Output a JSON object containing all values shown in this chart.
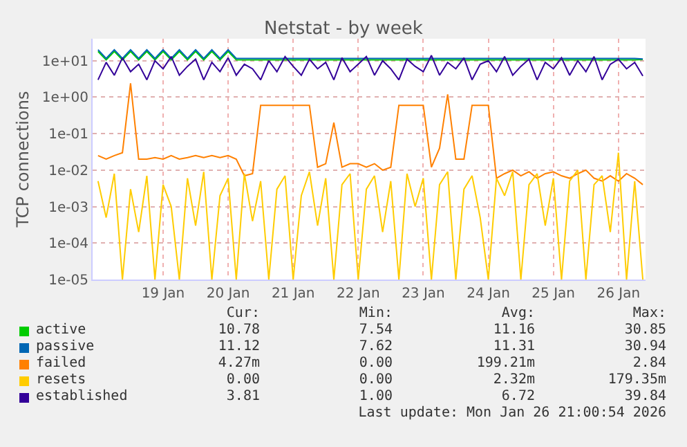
{
  "chart_data": {
    "type": "line",
    "title": "Netstat - by week",
    "ylabel": "TCP connections",
    "x": [
      "2026-01-18T00:00",
      "2026-01-18T03:00",
      "2026-01-18T06:00",
      "2026-01-18T09:00",
      "2026-01-18T12:00",
      "2026-01-18T15:00",
      "2026-01-18T18:00",
      "2026-01-18T21:00",
      "2026-01-19T00:00",
      "2026-01-19T03:00",
      "2026-01-19T06:00",
      "2026-01-19T09:00",
      "2026-01-19T12:00",
      "2026-01-19T15:00",
      "2026-01-19T18:00",
      "2026-01-19T21:00",
      "2026-01-20T00:00",
      "2026-01-20T03:00",
      "2026-01-20T06:00",
      "2026-01-20T09:00",
      "2026-01-20T12:00",
      "2026-01-20T15:00",
      "2026-01-20T18:00",
      "2026-01-20T21:00",
      "2026-01-21T00:00",
      "2026-01-21T03:00",
      "2026-01-21T06:00",
      "2026-01-21T09:00",
      "2026-01-21T12:00",
      "2026-01-21T15:00",
      "2026-01-21T18:00",
      "2026-01-21T21:00",
      "2026-01-22T00:00",
      "2026-01-22T03:00",
      "2026-01-22T06:00",
      "2026-01-22T09:00",
      "2026-01-22T12:00",
      "2026-01-22T15:00",
      "2026-01-22T18:00",
      "2026-01-22T21:00",
      "2026-01-23T00:00",
      "2026-01-23T03:00",
      "2026-01-23T06:00",
      "2026-01-23T09:00",
      "2026-01-23T12:00",
      "2026-01-23T15:00",
      "2026-01-23T18:00",
      "2026-01-23T21:00",
      "2026-01-24T00:00",
      "2026-01-24T03:00",
      "2026-01-24T06:00",
      "2026-01-24T09:00",
      "2026-01-24T12:00",
      "2026-01-24T15:00",
      "2026-01-24T18:00",
      "2026-01-24T21:00",
      "2026-01-25T00:00",
      "2026-01-25T03:00",
      "2026-01-25T06:00",
      "2026-01-25T09:00",
      "2026-01-25T12:00",
      "2026-01-25T15:00",
      "2026-01-25T18:00",
      "2026-01-25T21:00",
      "2026-01-26T00:00",
      "2026-01-26T03:00",
      "2026-01-26T06:00",
      "2026-01-26T09:00"
    ],
    "series": [
      {
        "name": "active",
        "color": "#00cc00",
        "values": [
          18,
          10.5,
          18,
          10.5,
          18,
          10.5,
          18,
          10.5,
          18,
          10.5,
          18,
          10.5,
          18,
          10.5,
          18,
          10.5,
          18,
          10.5,
          10.5,
          10.5,
          10.5,
          10.5,
          10.5,
          10.5,
          10.5,
          10.5,
          10.5,
          10.5,
          10.5,
          10.5,
          10.5,
          10.5,
          10.5,
          10.5,
          10.5,
          10.5,
          10.5,
          10.5,
          10.5,
          10.5,
          10.5,
          10.5,
          10.5,
          10.5,
          10.5,
          10.5,
          10.5,
          10.5,
          10.5,
          10.5,
          10.5,
          10.5,
          10.5,
          10.5,
          10.5,
          10.5,
          10.5,
          10.5,
          10.5,
          10.5,
          10.5,
          10.5,
          10.5,
          10.5,
          10.5,
          10.5,
          10.5,
          10.8
        ]
      },
      {
        "name": "passive",
        "color": "#0066b3",
        "values": [
          20,
          11.5,
          20,
          11.5,
          20,
          11.5,
          20,
          11.5,
          20,
          11.5,
          20,
          11.5,
          20,
          11.5,
          20,
          11.5,
          20,
          11.5,
          11.5,
          11.5,
          11.5,
          11.5,
          11.5,
          11.5,
          11.5,
          11.5,
          11.5,
          11.5,
          11.5,
          11.5,
          11.5,
          11.5,
          11.5,
          11.5,
          11.5,
          11.5,
          11.5,
          11.5,
          11.5,
          11.5,
          11.5,
          11.5,
          11.5,
          11.5,
          11.5,
          11.5,
          11.5,
          11.5,
          11.5,
          11.5,
          11.5,
          11.5,
          11.5,
          11.5,
          11.5,
          11.5,
          11.5,
          11.5,
          11.5,
          11.5,
          11.5,
          11.5,
          11.5,
          11.5,
          11.5,
          11.5,
          11.5,
          11.1
        ]
      },
      {
        "name": "failed",
        "color": "#ff8000",
        "values": [
          0.025,
          0.02,
          0.025,
          0.03,
          2.4,
          0.02,
          0.02,
          0.022,
          0.02,
          0.025,
          0.02,
          0.022,
          0.025,
          0.022,
          0.025,
          0.022,
          0.025,
          0.02,
          0.007,
          0.008,
          0.6,
          0.6,
          0.6,
          0.6,
          0.6,
          0.6,
          0.6,
          0.012,
          0.015,
          0.2,
          0.012,
          0.015,
          0.015,
          0.012,
          0.015,
          0.01,
          0.012,
          0.6,
          0.6,
          0.6,
          0.6,
          0.012,
          0.04,
          1.2,
          0.02,
          0.02,
          0.6,
          0.6,
          0.6,
          0.006,
          0.008,
          0.01,
          0.007,
          0.009,
          0.006,
          0.008,
          0.009,
          0.007,
          0.006,
          0.008,
          0.01,
          0.006,
          0.005,
          0.007,
          0.005,
          0.008,
          0.006,
          0.004
        ]
      },
      {
        "name": "resets",
        "color": "#ffcc00",
        "values": [
          0.005,
          0.0005,
          0.008,
          1e-05,
          0.003,
          0.0002,
          0.007,
          1e-05,
          0.004,
          0.001,
          1e-05,
          0.006,
          0.0003,
          0.009,
          1e-05,
          0.002,
          0.006,
          1e-05,
          0.008,
          0.0004,
          0.005,
          1e-05,
          0.003,
          0.007,
          1e-05,
          0.002,
          0.009,
          0.0003,
          0.006,
          1e-05,
          0.004,
          0.008,
          1e-05,
          0.003,
          0.007,
          0.0002,
          0.005,
          1e-05,
          0.008,
          0.001,
          0.006,
          1e-05,
          0.004,
          0.009,
          1e-05,
          0.003,
          0.007,
          0.0005,
          1e-05,
          0.006,
          0.002,
          0.009,
          1e-05,
          0.004,
          0.008,
          0.0003,
          0.006,
          1e-05,
          0.005,
          0.01,
          1e-05,
          0.004,
          0.007,
          0.0002,
          0.03,
          1e-05,
          0.005,
          1e-05
        ]
      },
      {
        "name": "established",
        "color": "#330099",
        "values": [
          3,
          9,
          4,
          12,
          5,
          8,
          3,
          10,
          6,
          13,
          4,
          7,
          11,
          3,
          9,
          5,
          12,
          4,
          8,
          6,
          3,
          10,
          5,
          13,
          7,
          4,
          11,
          6,
          9,
          3,
          12,
          5,
          8,
          13,
          4,
          10,
          6,
          3,
          11,
          7,
          5,
          14,
          4,
          9,
          6,
          12,
          3,
          8,
          10,
          5,
          13,
          4,
          7,
          11,
          3,
          9,
          6,
          12,
          4,
          10,
          5,
          13,
          3,
          8,
          11,
          6,
          9,
          3.81
        ]
      }
    ],
    "xlim": [
      "2026-01-17T22:00",
      "2026-01-26T10:00"
    ],
    "xticks": [
      {
        "value": "2026-01-19",
        "label": "19 Jan"
      },
      {
        "value": "2026-01-20",
        "label": "20 Jan"
      },
      {
        "value": "2026-01-21",
        "label": "21 Jan"
      },
      {
        "value": "2026-01-22",
        "label": "22 Jan"
      },
      {
        "value": "2026-01-23",
        "label": "23 Jan"
      },
      {
        "value": "2026-01-24",
        "label": "24 Jan"
      },
      {
        "value": "2026-01-25",
        "label": "25 Jan"
      },
      {
        "value": "2026-01-26",
        "label": "26 Jan"
      }
    ],
    "ylim": [
      1e-05,
      40
    ],
    "yticks": [
      {
        "value": 1e-05,
        "label": "1e-05"
      },
      {
        "value": 0.0001,
        "label": "1e-04"
      },
      {
        "value": 0.001,
        "label": "1e-03"
      },
      {
        "value": 0.01,
        "label": "1e-02"
      },
      {
        "value": 0.1,
        "label": "1e-01"
      },
      {
        "value": 1,
        "label": "1e+00"
      },
      {
        "value": 10,
        "label": "1e+01"
      }
    ],
    "log": "y",
    "grid": true,
    "legend": "bottom",
    "line_style": "solid",
    "annotations": [
      "Cur:",
      "Min:",
      "Avg:",
      "Max:",
      "10.78",
      "7.54",
      "11.16",
      "30.85",
      "11.12",
      "7.62",
      "11.31",
      "30.94",
      "4.27m",
      "0.00",
      "199.21m",
      "2.84",
      "0.00",
      "0.00",
      "2.32m",
      "179.35m",
      "3.81",
      "1.00",
      "6.72",
      "39.84",
      "Last update: Mon Jan 26 21:00:54 2026"
    ]
  }
}
